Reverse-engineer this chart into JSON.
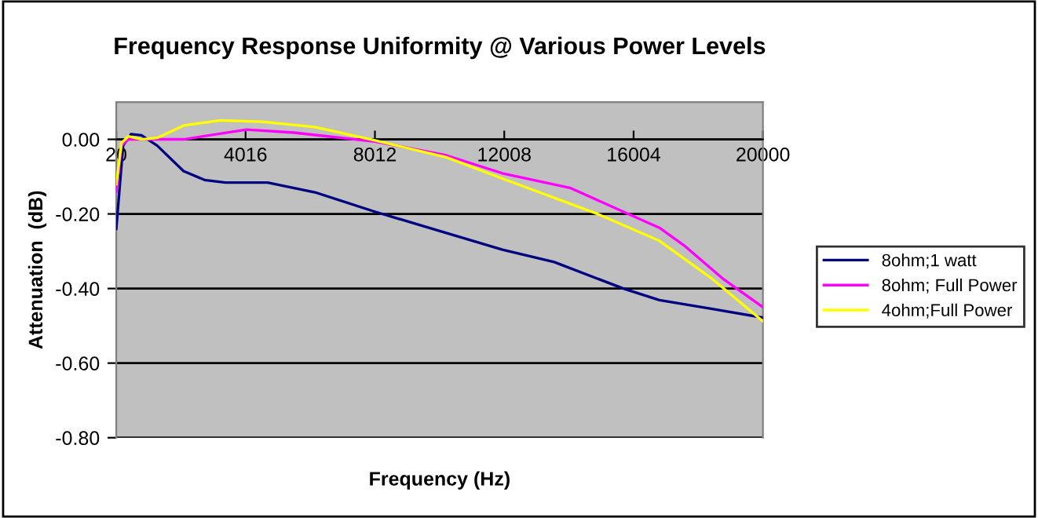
{
  "chart_data": {
    "type": "line",
    "title": "Frequency Response Uniformity @ Various Power Levels",
    "xlabel": "Frequency (Hz)",
    "ylabel": "Attenuation  (dB)",
    "xlim": [
      20,
      20000
    ],
    "xticks": [
      20,
      4016,
      8012,
      12008,
      16004,
      20000
    ],
    "ylim": [
      -0.8,
      0.1
    ],
    "yticks": [
      {
        "value": 0,
        "label": "0.00"
      },
      {
        "value": -0.2,
        "label": "-0.20"
      },
      {
        "value": -0.4,
        "label": "-0.40"
      },
      {
        "value": -0.6,
        "label": "-0.60"
      },
      {
        "value": -0.8,
        "label": "-0.80"
      }
    ],
    "grid": "y",
    "legend": "right",
    "marker": "none",
    "line_style": "solid",
    "series": [
      {
        "name": "8ohm;1 watt",
        "color": "#000080",
        "x": [
          20,
          231,
          475,
          800,
          1287,
          2099,
          2749,
          3399,
          4698,
          6160,
          8012,
          10221,
          11951,
          13552,
          15686,
          16801,
          18402,
          20000
        ],
        "values": [
          -0.24,
          -0.017,
          0.014,
          0.011,
          -0.017,
          -0.085,
          -0.109,
          -0.116,
          -0.116,
          -0.142,
          -0.194,
          -0.251,
          -0.296,
          -0.329,
          -0.4,
          -0.431,
          -0.454,
          -0.478
        ]
      },
      {
        "name": "8ohm; Full Power",
        "color": "#ff00ff",
        "x": [
          20,
          182,
          393,
          2099,
          4048,
          5510,
          8012,
          10221,
          11951,
          14036,
          15686,
          16801,
          17601,
          18738,
          20000
        ],
        "values": [
          -0.14,
          -0.017,
          0.0,
          0.0,
          0.026,
          0.018,
          -0.006,
          -0.043,
          -0.091,
          -0.13,
          -0.194,
          -0.237,
          -0.287,
          -0.372,
          -0.45
        ]
      },
      {
        "name": "4ohm;Full Power",
        "color": "#ffff00",
        "x": [
          20,
          182,
          393,
          800,
          1287,
          2099,
          3236,
          4536,
          6160,
          8012,
          10221,
          11951,
          14861,
          16801,
          18402,
          20000
        ],
        "values": [
          -0.12,
          -0.01,
          0.008,
          0.0,
          0.004,
          0.037,
          0.051,
          0.047,
          0.033,
          -0.003,
          -0.048,
          -0.105,
          -0.199,
          -0.272,
          -0.372,
          -0.488
        ]
      }
    ]
  }
}
